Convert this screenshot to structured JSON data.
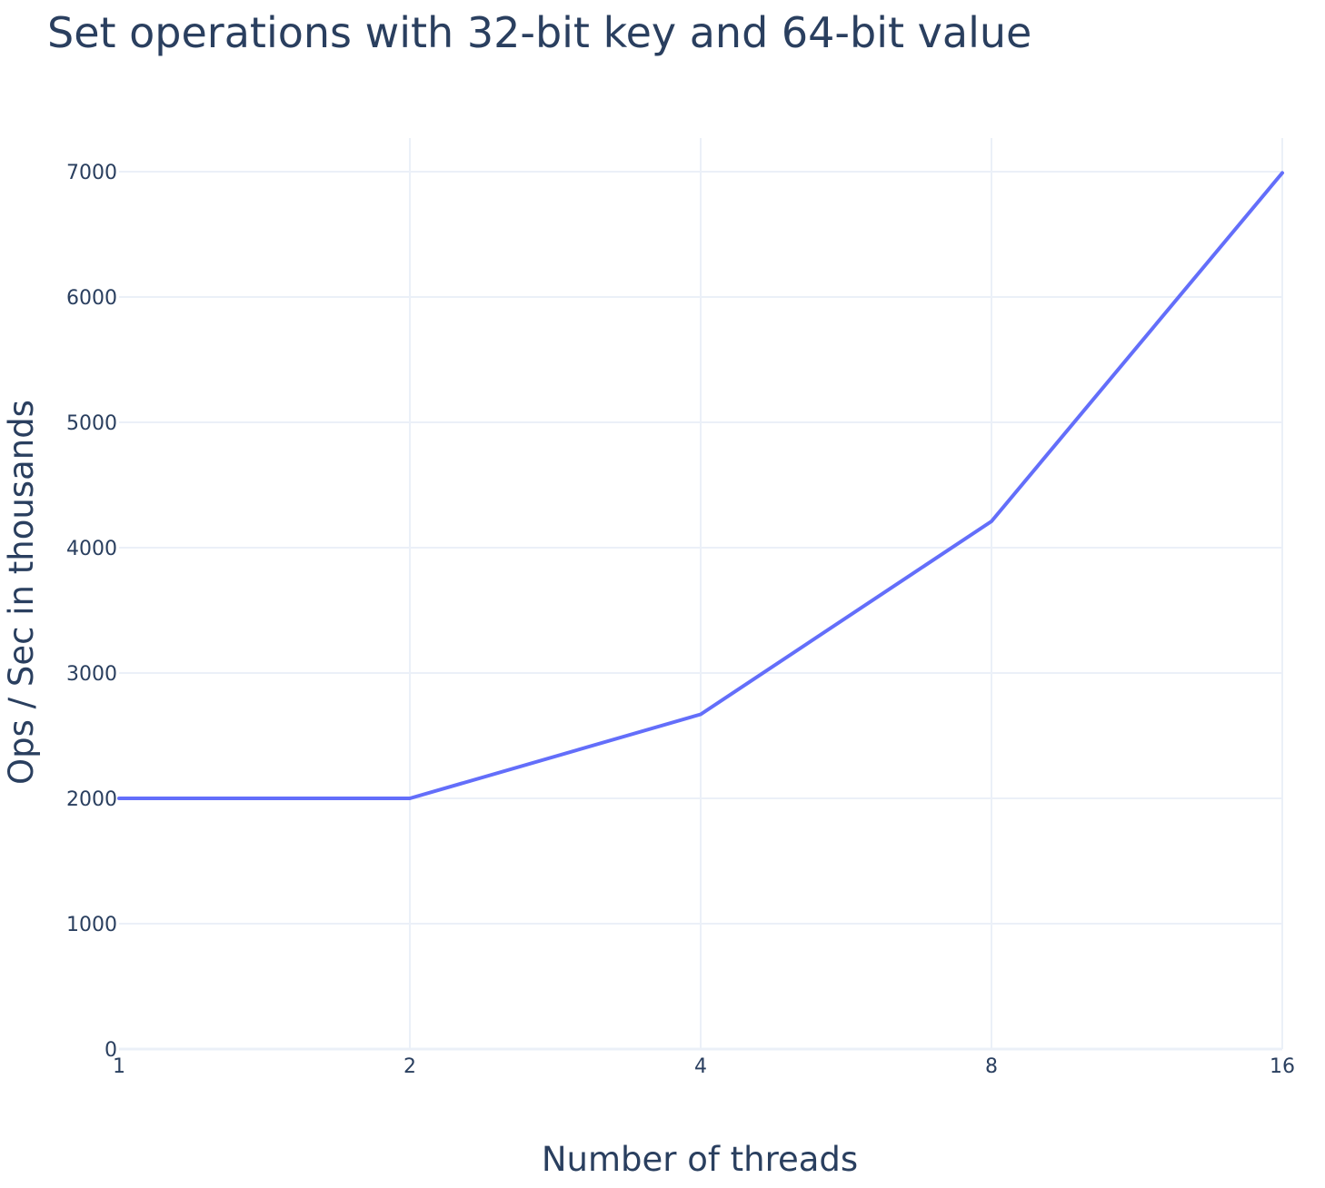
{
  "chart_data": {
    "type": "line",
    "title": "Set operations with 32-bit key and 64-bit value",
    "xlabel": "Number of threads",
    "ylabel": "Ops / Sec in thousands",
    "x_scale": "log2",
    "x_ticks": [
      "1",
      "2",
      "4",
      "8",
      "16"
    ],
    "y_ticks": [
      "0",
      "1000",
      "2000",
      "3000",
      "4000",
      "5000",
      "6000",
      "7000"
    ],
    "ylim": [
      0,
      7000
    ],
    "xlim": [
      1,
      16
    ],
    "grid": true,
    "series": [
      {
        "color": "#636efa",
        "x": [
          1,
          2,
          4,
          8,
          16
        ],
        "y": [
          2000,
          2000,
          2670,
          4210,
          6990
        ]
      }
    ]
  }
}
